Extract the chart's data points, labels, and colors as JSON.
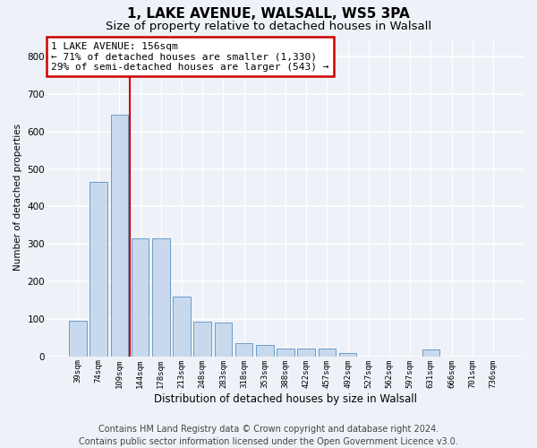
{
  "title1": "1, LAKE AVENUE, WALSALL, WS5 3PA",
  "title2": "Size of property relative to detached houses in Walsall",
  "xlabel": "Distribution of detached houses by size in Walsall",
  "ylabel": "Number of detached properties",
  "categories": [
    "39sqm",
    "74sqm",
    "109sqm",
    "144sqm",
    "178sqm",
    "213sqm",
    "248sqm",
    "283sqm",
    "318sqm",
    "353sqm",
    "388sqm",
    "422sqm",
    "457sqm",
    "492sqm",
    "527sqm",
    "562sqm",
    "597sqm",
    "631sqm",
    "666sqm",
    "701sqm",
    "736sqm"
  ],
  "values": [
    95,
    465,
    645,
    315,
    315,
    160,
    93,
    90,
    35,
    30,
    20,
    20,
    20,
    8,
    0,
    0,
    0,
    18,
    0,
    0,
    0
  ],
  "bar_color": "#c9d9ed",
  "bar_edge_color": "#6a9cc9",
  "background_color": "#eef2f8",
  "grid_color": "#ffffff",
  "annotation_text1": "1 LAKE AVENUE: 156sqm",
  "annotation_text2": "← 71% of detached houses are smaller (1,330)",
  "annotation_text3": "29% of semi-detached houses are larger (543) →",
  "vline_x": 2.5,
  "vline_color": "#cc0000",
  "ylim": [
    0,
    850
  ],
  "yticks": [
    0,
    100,
    200,
    300,
    400,
    500,
    600,
    700,
    800
  ],
  "footer1": "Contains HM Land Registry data © Crown copyright and database right 2024.",
  "footer2": "Contains public sector information licensed under the Open Government Licence v3.0.",
  "title1_fontsize": 11,
  "title2_fontsize": 9.5,
  "annotation_fontsize": 8,
  "footer_fontsize": 7
}
